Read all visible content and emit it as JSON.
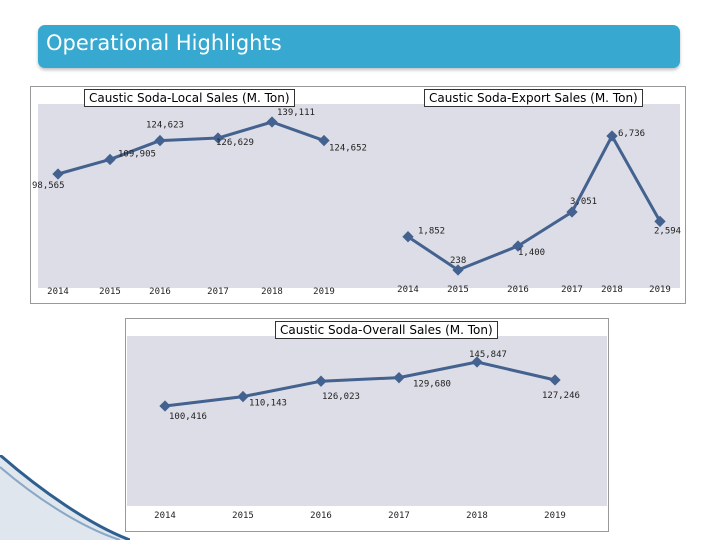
{
  "header": {
    "title": "Operational Highlights"
  },
  "colors": {
    "header_bg": "#37a8cf",
    "line": "#44628f",
    "plot_bg": "#dcdde6",
    "marker": "#44628f"
  },
  "chart_data": [
    {
      "id": "local",
      "type": "line",
      "title": "Caustic Soda-Local Sales (M. Ton)",
      "categories": [
        "2014",
        "2015",
        "2016",
        "2017",
        "2018",
        "2019"
      ],
      "values": [
        98565,
        109905,
        124623,
        126629,
        139111,
        124652
      ],
      "value_labels": [
        "98,565",
        "109,905",
        "124,623",
        "126,629",
        "139,111",
        "124,652"
      ]
    },
    {
      "id": "export",
      "type": "line",
      "title": "Caustic Soda-Export Sales (M. Ton)",
      "categories": [
        "2014",
        "2015",
        "2016",
        "2017",
        "2018",
        "2019"
      ],
      "values": [
        1852,
        238,
        1400,
        3051,
        6736,
        2594
      ],
      "value_labels": [
        "1,852",
        "238",
        "1,400",
        "3,051",
        "6,736",
        "2,594"
      ]
    },
    {
      "id": "overall",
      "type": "line",
      "title": "Caustic Soda-Overall Sales (M. Ton)",
      "categories": [
        "2014",
        "2015",
        "2016",
        "2017",
        "2018",
        "2019"
      ],
      "values": [
        100416,
        110143,
        126023,
        129680,
        145847,
        127246
      ],
      "value_labels": [
        "100,416",
        "110,143",
        "126,023",
        "129,680",
        "145,847",
        "127,246"
      ]
    }
  ]
}
